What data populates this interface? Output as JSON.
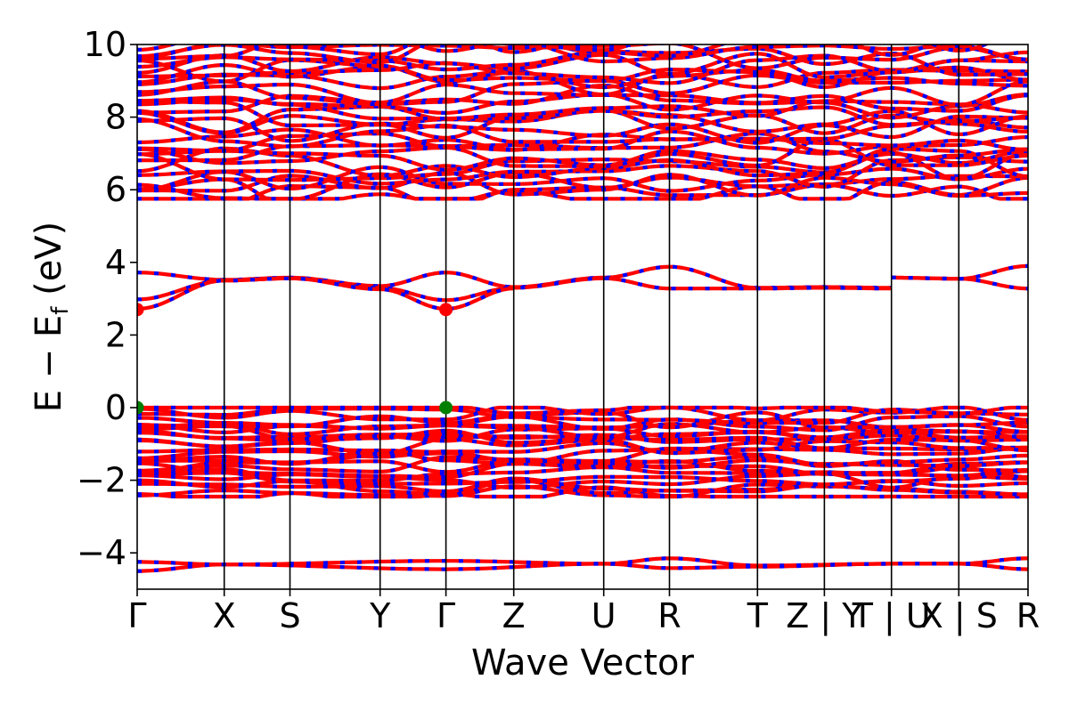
{
  "chart_data": {
    "type": "line",
    "title": "",
    "xlabel": "Wave Vector",
    "ylabel": "E − E_f (eV)",
    "ylabel_main": "E − E",
    "ylabel_sub": "f",
    "ylabel_unit": " (eV)",
    "ylim": [
      -5,
      10
    ],
    "yticks": [
      -4,
      -2,
      0,
      2,
      4,
      6,
      8,
      10
    ],
    "ytick_labels": [
      "−4",
      "−2",
      "0",
      "2",
      "4",
      "6",
      "8",
      "10"
    ],
    "grid": false,
    "legend": "none",
    "colors": {
      "band_red": "#ff0000",
      "band_blue": "#0000ff",
      "cbm": "#ff0000",
      "vbm": "#008000",
      "divider": "#000000"
    },
    "kpoint_labels": [
      "Γ",
      "X",
      "S",
      "Y",
      "Γ",
      "Z",
      "U",
      "R",
      "T",
      "Z | Y",
      "T | U",
      "X | S",
      "R"
    ],
    "kpoint_positions": [
      0,
      0.0977,
      0.1715,
      0.2727,
      0.3466,
      0.4227,
      0.5237,
      0.5975,
      0.6963,
      0.7714,
      0.8467,
      0.9223,
      1.0
    ],
    "band_groups": [
      {
        "name": "deep",
        "energy_range": [
          -4.55,
          -4.15
        ]
      },
      {
        "name": "valence",
        "energy_range": [
          -2.45,
          0.0
        ]
      },
      {
        "name": "gap_states",
        "energy_range": [
          2.65,
          3.95
        ]
      },
      {
        "name": "conduction",
        "energy_range": [
          5.75,
          10.0
        ]
      }
    ],
    "gap_bands": [
      {
        "k": [
          0,
          0.0977,
          0.1715,
          0.2727,
          0.3466,
          0.4227,
          0.5237,
          0.5975,
          0.6963,
          0.7714,
          0.8467
        ],
        "e": [
          3.72,
          3.52,
          3.58,
          3.35,
          3.72,
          3.32,
          3.58,
          3.88,
          3.3,
          3.32,
          3.3
        ]
      },
      {
        "k": [
          0,
          0.0977,
          0.1715,
          0.2727,
          0.3466,
          0.4227,
          0.5237,
          0.5975,
          0.6963,
          0.7714,
          0.8467
        ],
        "e": [
          2.98,
          3.5,
          3.56,
          3.3,
          2.96,
          3.3,
          3.56,
          3.28,
          3.28,
          3.3,
          3.28
        ]
      },
      {
        "k": [
          0,
          0.0977,
          0.1715,
          0.2727,
          0.3466,
          0.4227
        ],
        "e": [
          2.72,
          3.5,
          3.56,
          3.26,
          2.72,
          3.28
        ]
      },
      {
        "k": [
          0.8467,
          0.9223,
          1.0
        ],
        "e": [
          3.58,
          3.55,
          3.9
        ]
      },
      {
        "k": [
          0.8467,
          0.9223,
          1.0
        ],
        "e": [
          3.58,
          3.55,
          3.28
        ]
      }
    ],
    "deep_bands": [
      {
        "k": [
          0,
          0.0977,
          0.3466,
          0.5237,
          0.5975,
          0.6963,
          0.8467,
          0.9223,
          1.0
        ],
        "e": [
          -4.25,
          -4.32,
          -4.22,
          -4.3,
          -4.15,
          -4.35,
          -4.3,
          -4.3,
          -4.15
        ]
      },
      {
        "k": [
          0,
          0.0977,
          0.3466,
          0.5237,
          0.5975,
          0.6963,
          0.8467,
          0.9223,
          1.0
        ],
        "e": [
          -4.5,
          -4.32,
          -4.45,
          -4.3,
          -4.42,
          -4.38,
          -4.3,
          -4.3,
          -4.45
        ]
      }
    ],
    "extrema": {
      "cbm": [
        {
          "k": 0,
          "e": 2.7
        },
        {
          "k": 0.3466,
          "e": 2.7
        }
      ],
      "vbm": [
        {
          "k": 0,
          "e": 0.0
        },
        {
          "k": 0.3466,
          "e": 0.0
        }
      ]
    }
  }
}
